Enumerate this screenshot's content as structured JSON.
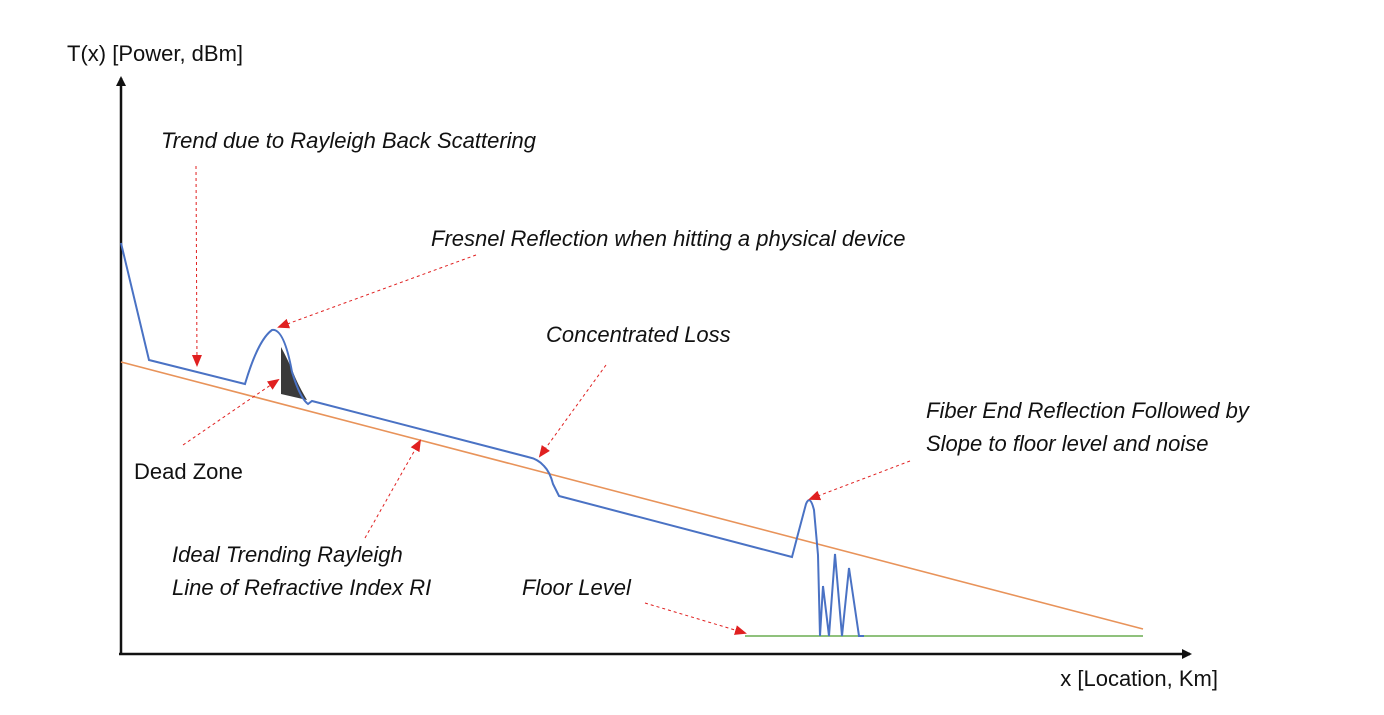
{
  "axes": {
    "y_label": "T(x) [Power, dBm]",
    "x_label": "x [Location, Km]"
  },
  "annotations": {
    "rayleigh_trend": "Trend due to Rayleigh Back Scattering",
    "fresnel": "Fresnel Reflection when hitting a physical device",
    "concentrated_loss": "Concentrated Loss",
    "fiber_end_line1": "Fiber End Reflection Followed by",
    "fiber_end_line2": "Slope to floor level and noise",
    "dead_zone": "Dead Zone",
    "ideal_line1": "Ideal Trending Rayleigh",
    "ideal_line2": "Line of Refractive Index RI",
    "floor_level": "Floor Level"
  },
  "colors": {
    "trace": "#4a72c4",
    "ideal_line": "#e8935a",
    "floor": "#7fb86a",
    "arrow": "#e02020",
    "axis": "#111111",
    "dead_zone_fill": "#3a3a3a"
  }
}
